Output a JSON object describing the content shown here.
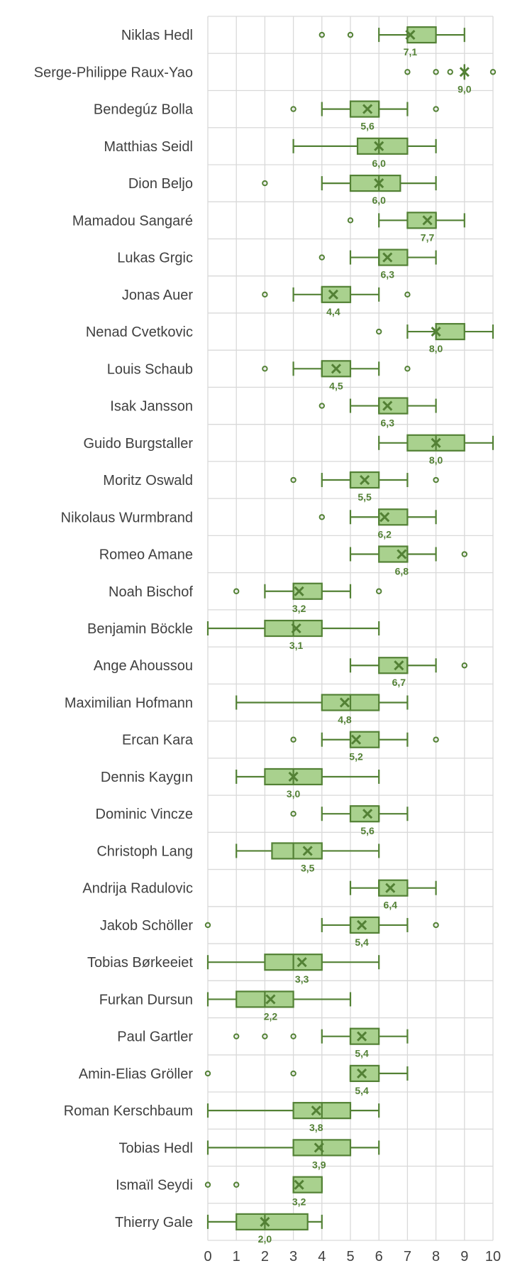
{
  "chart_data": {
    "type": "box",
    "xlim": [
      0,
      10
    ],
    "xticks": [
      "0",
      "1",
      "2",
      "3",
      "4",
      "5",
      "6",
      "7",
      "8",
      "9",
      "10"
    ],
    "grid": true,
    "colors": {
      "fill": "#a9d18e",
      "stroke": "#538135",
      "grid": "#d9d9d9",
      "text": "#404040"
    },
    "players": [
      {
        "name": "Niklas Hedl",
        "min": 6,
        "q1": 7,
        "median": 7,
        "q3": 8,
        "max": 9,
        "mean": 7.1,
        "mean_label": "7,1",
        "outliers": [
          4,
          5
        ]
      },
      {
        "name": "Serge-Philippe Raux-Yao",
        "min": 9,
        "q1": 9,
        "median": 9,
        "q3": 9,
        "max": 9,
        "mean": 9.0,
        "mean_label": "9,0",
        "outliers": [
          7,
          8,
          8.5,
          10
        ]
      },
      {
        "name": "Bendegúz Bolla",
        "min": 4,
        "q1": 5,
        "median": 6,
        "q3": 6,
        "max": 7,
        "mean": 5.6,
        "mean_label": "5,6",
        "outliers": [
          3,
          8
        ]
      },
      {
        "name": "Matthias Seidl",
        "min": 3,
        "q1": 5.25,
        "median": 6,
        "q3": 7,
        "max": 8,
        "mean": 6.0,
        "mean_label": "6,0",
        "outliers": []
      },
      {
        "name": "Dion Beljo",
        "min": 4,
        "q1": 5,
        "median": 6,
        "q3": 6.75,
        "max": 8,
        "mean": 6.0,
        "mean_label": "6,0",
        "outliers": [
          2
        ]
      },
      {
        "name": "Mamadou Sangaré",
        "min": 6,
        "q1": 7,
        "median": 8,
        "q3": 8,
        "max": 9,
        "mean": 7.7,
        "mean_label": "7,7",
        "outliers": [
          5
        ]
      },
      {
        "name": "Lukas Grgic",
        "min": 5,
        "q1": 6,
        "median": 6,
        "q3": 7,
        "max": 8,
        "mean": 6.3,
        "mean_label": "6,3",
        "outliers": [
          4
        ]
      },
      {
        "name": "Jonas Auer",
        "min": 3,
        "q1": 4,
        "median": 4,
        "q3": 5,
        "max": 6,
        "mean": 4.4,
        "mean_label": "4,4",
        "outliers": [
          2,
          7
        ]
      },
      {
        "name": "Nenad Cvetkovic",
        "min": 7,
        "q1": 8,
        "median": 8,
        "q3": 9,
        "max": 10,
        "mean": 8.0,
        "mean_label": "8,0",
        "outliers": [
          6
        ]
      },
      {
        "name": "Louis Schaub",
        "min": 3,
        "q1": 4,
        "median": 4,
        "q3": 5,
        "max": 6,
        "mean": 4.5,
        "mean_label": "4,5",
        "outliers": [
          2,
          7
        ]
      },
      {
        "name": "Isak Jansson",
        "min": 5,
        "q1": 6,
        "median": 6,
        "q3": 7,
        "max": 8,
        "mean": 6.3,
        "mean_label": "6,3",
        "outliers": [
          4
        ]
      },
      {
        "name": "Guido Burgstaller",
        "min": 6,
        "q1": 7,
        "median": 8,
        "q3": 9,
        "max": 10,
        "mean": 8.0,
        "mean_label": "8,0",
        "outliers": []
      },
      {
        "name": "Moritz Oswald",
        "min": 4,
        "q1": 5,
        "median": 5,
        "q3": 6,
        "max": 7,
        "mean": 5.5,
        "mean_label": "5,5",
        "outliers": [
          3,
          8
        ]
      },
      {
        "name": "Nikolaus Wurmbrand",
        "min": 5,
        "q1": 6,
        "median": 6,
        "q3": 7,
        "max": 8,
        "mean": 6.2,
        "mean_label": "6,2",
        "outliers": [
          4
        ]
      },
      {
        "name": "Romeo Amane",
        "min": 5,
        "q1": 6,
        "median": 7,
        "q3": 7,
        "max": 8,
        "mean": 6.8,
        "mean_label": "6,8",
        "outliers": [
          9
        ]
      },
      {
        "name": "Noah Bischof",
        "min": 2,
        "q1": 3,
        "median": 3,
        "q3": 4,
        "max": 5,
        "mean": 3.2,
        "mean_label": "3,2",
        "outliers": [
          1,
          6
        ]
      },
      {
        "name": "Benjamin Böckle",
        "min": 0,
        "q1": 2,
        "median": 3,
        "q3": 4,
        "max": 6,
        "mean": 3.1,
        "mean_label": "3,1",
        "outliers": []
      },
      {
        "name": "Ange Ahoussou",
        "min": 5,
        "q1": 6,
        "median": 7,
        "q3": 7,
        "max": 8,
        "mean": 6.7,
        "mean_label": "6,7",
        "outliers": [
          9
        ]
      },
      {
        "name": "Maximilian Hofmann",
        "min": 1,
        "q1": 4,
        "median": 5,
        "q3": 6,
        "max": 7,
        "mean": 4.8,
        "mean_label": "4,8",
        "outliers": []
      },
      {
        "name": "Ercan Kara",
        "min": 4,
        "q1": 5,
        "median": 5,
        "q3": 6,
        "max": 7,
        "mean": 5.2,
        "mean_label": "5,2",
        "outliers": [
          3,
          8
        ]
      },
      {
        "name": "Dennis Kaygın",
        "min": 1,
        "q1": 2,
        "median": 3,
        "q3": 4,
        "max": 6,
        "mean": 3.0,
        "mean_label": "3,0",
        "outliers": []
      },
      {
        "name": "Dominic Vincze",
        "min": 4,
        "q1": 5,
        "median": 6,
        "q3": 6,
        "max": 7,
        "mean": 5.6,
        "mean_label": "5,6",
        "outliers": [
          3
        ]
      },
      {
        "name": "Christoph Lang",
        "min": 1,
        "q1": 2.25,
        "median": 3,
        "q3": 4,
        "max": 6,
        "mean": 3.5,
        "mean_label": "3,5",
        "outliers": []
      },
      {
        "name": "Andrija Radulovic",
        "min": 5,
        "q1": 6,
        "median": 6,
        "q3": 7,
        "max": 8,
        "mean": 6.4,
        "mean_label": "6,4",
        "outliers": []
      },
      {
        "name": "Jakob Schöller",
        "min": 4,
        "q1": 5,
        "median": 5,
        "q3": 6,
        "max": 7,
        "mean": 5.4,
        "mean_label": "5,4",
        "outliers": [
          0,
          8
        ]
      },
      {
        "name": "Tobias Børkeeiet",
        "min": 0,
        "q1": 2,
        "median": 3,
        "q3": 4,
        "max": 6,
        "mean": 3.3,
        "mean_label": "3,3",
        "outliers": []
      },
      {
        "name": "Furkan Dursun",
        "min": 0,
        "q1": 1,
        "median": 2,
        "q3": 3,
        "max": 5,
        "mean": 2.2,
        "mean_label": "2,2",
        "outliers": []
      },
      {
        "name": "Paul Gartler",
        "min": 4,
        "q1": 5,
        "median": 5,
        "q3": 6,
        "max": 7,
        "mean": 5.4,
        "mean_label": "5,4",
        "outliers": [
          1,
          2,
          3
        ]
      },
      {
        "name": "Amin-Elias Gröller",
        "min": 5,
        "q1": 5,
        "median": 5,
        "q3": 6,
        "max": 7,
        "mean": 5.4,
        "mean_label": "5,4",
        "outliers": [
          0,
          3
        ]
      },
      {
        "name": "Roman Kerschbaum",
        "min": 0,
        "q1": 3,
        "median": 4,
        "q3": 5,
        "max": 6,
        "mean": 3.8,
        "mean_label": "3,8",
        "outliers": []
      },
      {
        "name": "Tobias Hedl",
        "min": 0,
        "q1": 3,
        "median": 4,
        "q3": 5,
        "max": 6,
        "mean": 3.9,
        "mean_label": "3,9",
        "outliers": []
      },
      {
        "name": "Ismaïl Seydi",
        "min": 3,
        "q1": 3,
        "median": 3,
        "q3": 4,
        "max": 4,
        "mean": 3.2,
        "mean_label": "3,2",
        "outliers": [
          0,
          1
        ]
      },
      {
        "name": "Thierry Gale",
        "min": 0,
        "q1": 1,
        "median": 2,
        "q3": 3.5,
        "max": 4,
        "mean": 2.0,
        "mean_label": "2,0",
        "outliers": []
      }
    ]
  }
}
